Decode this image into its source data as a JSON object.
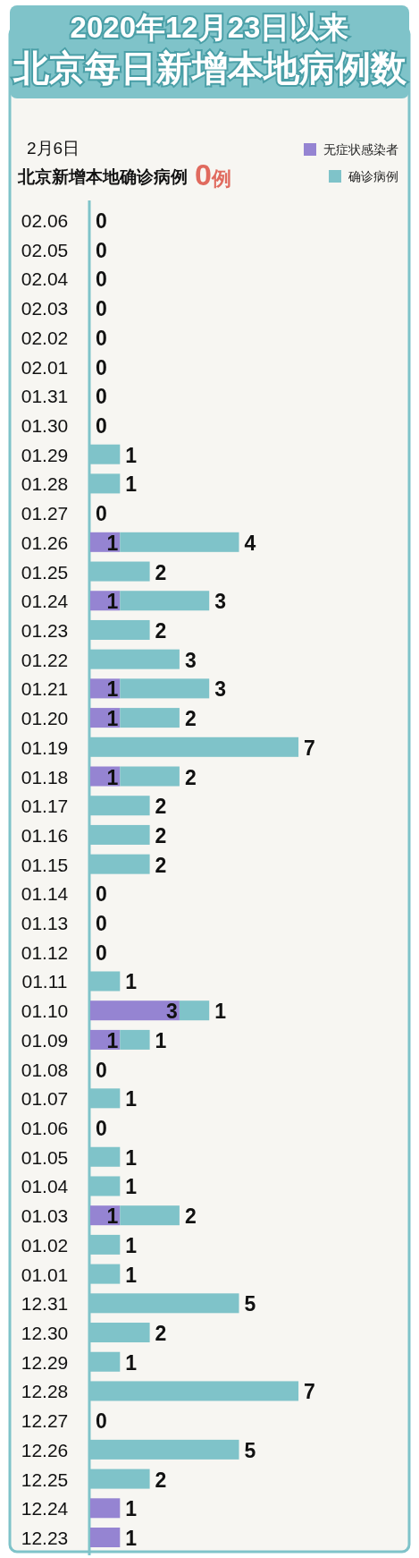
{
  "chart_data": {
    "type": "bar",
    "orientation": "horizontal",
    "stacked": true,
    "title": "2020年12月23日以来",
    "subtitle": "北京每日新增本地病例数",
    "annotations": [
      "2月6日",
      "北京新增本地确诊病例",
      "0例"
    ],
    "legend": "top right",
    "categories": [
      "02.06",
      "02.05",
      "02.04",
      "02.03",
      "02.02",
      "02.01",
      "01.31",
      "01.30",
      "01.29",
      "01.28",
      "01.27",
      "01.26",
      "01.25",
      "01.24",
      "01.23",
      "01.22",
      "01.21",
      "01.20",
      "01.19",
      "01.18",
      "01.17",
      "01.16",
      "01.15",
      "01.14",
      "01.13",
      "01.12",
      "01.11",
      "01.10",
      "01.09",
      "01.08",
      "01.07",
      "01.06",
      "01.05",
      "01.04",
      "01.03",
      "01.02",
      "01.01",
      "12.31",
      "12.30",
      "12.29",
      "12.28",
      "12.27",
      "12.26",
      "12.25",
      "12.24",
      "12.23"
    ],
    "series": [
      {
        "name": "无症状感染者",
        "color": "#9584d2",
        "values": [
          0,
          0,
          0,
          0,
          0,
          0,
          0,
          0,
          0,
          0,
          0,
          1,
          0,
          1,
          0,
          0,
          1,
          1,
          0,
          1,
          0,
          0,
          0,
          0,
          0,
          0,
          0,
          3,
          1,
          0,
          0,
          0,
          0,
          0,
          1,
          0,
          0,
          0,
          0,
          0,
          0,
          0,
          0,
          0,
          1,
          1
        ],
        "value_labels": [
          null,
          null,
          null,
          null,
          null,
          null,
          null,
          null,
          null,
          null,
          null,
          "1",
          null,
          "1",
          null,
          null,
          "1",
          "1",
          null,
          "1",
          null,
          null,
          null,
          null,
          null,
          null,
          null,
          "3",
          "1",
          null,
          null,
          null,
          null,
          null,
          "1",
          null,
          null,
          null,
          null,
          null,
          null,
          null,
          null,
          null,
          "1",
          "1"
        ]
      },
      {
        "name": "确诊病例",
        "color": "#7fc3c9",
        "values": [
          0,
          0,
          0,
          0,
          0,
          0,
          0,
          0,
          1,
          1,
          0,
          4,
          2,
          3,
          2,
          3,
          3,
          2,
          7,
          2,
          2,
          2,
          2,
          0,
          0,
          0,
          1,
          1,
          1,
          0,
          1,
          0,
          1,
          1,
          2,
          1,
          1,
          5,
          2,
          1,
          7,
          0,
          5,
          2,
          0,
          0
        ],
        "value_labels": [
          "0",
          "0",
          "0",
          "0",
          "0",
          "0",
          "0",
          "0",
          "1",
          "1",
          "0",
          "4",
          "2",
          "3",
          "2",
          "3",
          "3",
          "2",
          "7",
          "2",
          "2",
          "2",
          "2",
          "0",
          "0",
          "0",
          "1",
          "1",
          "1",
          "0",
          "1",
          "0",
          "1",
          "1",
          "2",
          "1",
          "1",
          "5",
          "2",
          "1",
          "7",
          "0",
          "5",
          "2",
          null,
          null
        ]
      }
    ]
  }
}
